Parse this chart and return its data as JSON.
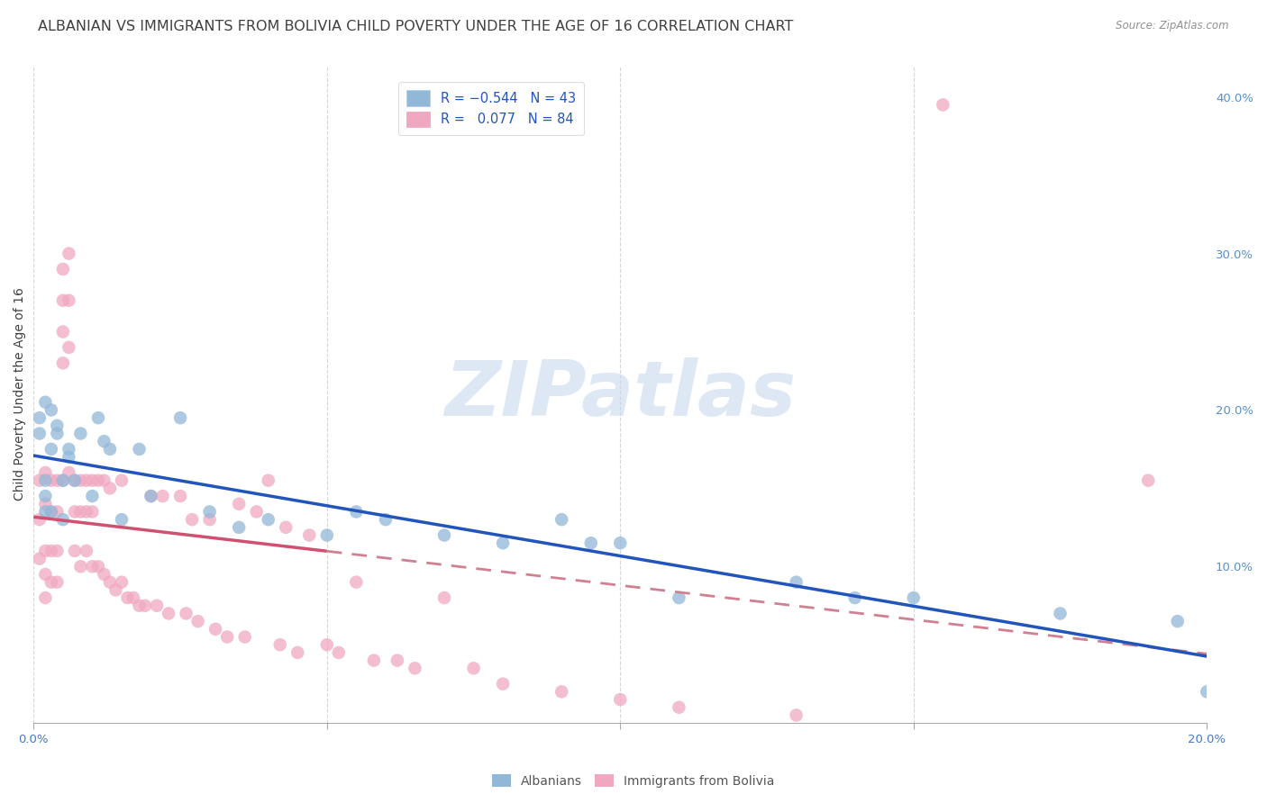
{
  "title": "ALBANIAN VS IMMIGRANTS FROM BOLIVIA CHILD POVERTY UNDER THE AGE OF 16 CORRELATION CHART",
  "source": "Source: ZipAtlas.com",
  "ylabel": "Child Poverty Under the Age of 16",
  "xlim": [
    0,
    0.2
  ],
  "ylim": [
    0,
    0.42
  ],
  "watermark_text": "ZIPatlas",
  "blue_color": "#92b8d8",
  "pink_color": "#f0a8c0",
  "blue_line_color": "#2255bb",
  "pink_line_color": "#d05070",
  "pink_dash_color": "#d08090",
  "background_color": "#ffffff",
  "grid_color": "#cccccc",
  "title_color": "#404040",
  "right_axis_color": "#5590d0",
  "source_color": "#909090",
  "legend_label_color": "#2255bb",
  "bottom_legend_color": "#555555",
  "title_fontsize": 11.5,
  "label_fontsize": 10,
  "tick_fontsize": 9.5,
  "scatter_size": 110,
  "scatter_alpha": 0.75,
  "alb_x": [
    0.001,
    0.001,
    0.002,
    0.002,
    0.002,
    0.002,
    0.003,
    0.003,
    0.003,
    0.004,
    0.004,
    0.005,
    0.005,
    0.006,
    0.006,
    0.007,
    0.008,
    0.01,
    0.011,
    0.012,
    0.013,
    0.015,
    0.018,
    0.02,
    0.025,
    0.03,
    0.035,
    0.04,
    0.05,
    0.055,
    0.06,
    0.07,
    0.08,
    0.09,
    0.095,
    0.1,
    0.11,
    0.13,
    0.14,
    0.15,
    0.175,
    0.195,
    0.2
  ],
  "alb_y": [
    0.195,
    0.185,
    0.205,
    0.145,
    0.135,
    0.155,
    0.135,
    0.2,
    0.175,
    0.185,
    0.19,
    0.155,
    0.13,
    0.17,
    0.175,
    0.155,
    0.185,
    0.145,
    0.195,
    0.18,
    0.175,
    0.13,
    0.175,
    0.145,
    0.195,
    0.135,
    0.125,
    0.13,
    0.12,
    0.135,
    0.13,
    0.12,
    0.115,
    0.13,
    0.115,
    0.115,
    0.08,
    0.09,
    0.08,
    0.08,
    0.07,
    0.065,
    0.02
  ],
  "bol_x": [
    0.001,
    0.001,
    0.001,
    0.002,
    0.002,
    0.002,
    0.002,
    0.002,
    0.003,
    0.003,
    0.003,
    0.003,
    0.004,
    0.004,
    0.004,
    0.004,
    0.005,
    0.005,
    0.005,
    0.005,
    0.005,
    0.006,
    0.006,
    0.006,
    0.006,
    0.007,
    0.007,
    0.007,
    0.008,
    0.008,
    0.008,
    0.009,
    0.009,
    0.009,
    0.01,
    0.01,
    0.01,
    0.011,
    0.011,
    0.012,
    0.012,
    0.013,
    0.013,
    0.014,
    0.015,
    0.015,
    0.016,
    0.017,
    0.018,
    0.019,
    0.02,
    0.021,
    0.022,
    0.023,
    0.025,
    0.026,
    0.027,
    0.028,
    0.03,
    0.031,
    0.033,
    0.035,
    0.036,
    0.038,
    0.04,
    0.042,
    0.043,
    0.045,
    0.047,
    0.05,
    0.052,
    0.055,
    0.058,
    0.062,
    0.065,
    0.07,
    0.075,
    0.08,
    0.09,
    0.1,
    0.11,
    0.13,
    0.155,
    0.19
  ],
  "bol_y": [
    0.155,
    0.13,
    0.105,
    0.16,
    0.14,
    0.11,
    0.095,
    0.08,
    0.155,
    0.135,
    0.11,
    0.09,
    0.155,
    0.135,
    0.11,
    0.09,
    0.29,
    0.27,
    0.25,
    0.23,
    0.155,
    0.3,
    0.27,
    0.24,
    0.16,
    0.155,
    0.135,
    0.11,
    0.155,
    0.135,
    0.1,
    0.155,
    0.135,
    0.11,
    0.155,
    0.135,
    0.1,
    0.155,
    0.1,
    0.155,
    0.095,
    0.15,
    0.09,
    0.085,
    0.155,
    0.09,
    0.08,
    0.08,
    0.075,
    0.075,
    0.145,
    0.075,
    0.145,
    0.07,
    0.145,
    0.07,
    0.13,
    0.065,
    0.13,
    0.06,
    0.055,
    0.14,
    0.055,
    0.135,
    0.155,
    0.05,
    0.125,
    0.045,
    0.12,
    0.05,
    0.045,
    0.09,
    0.04,
    0.04,
    0.035,
    0.08,
    0.035,
    0.025,
    0.02,
    0.015,
    0.01,
    0.005,
    0.395,
    0.155
  ]
}
